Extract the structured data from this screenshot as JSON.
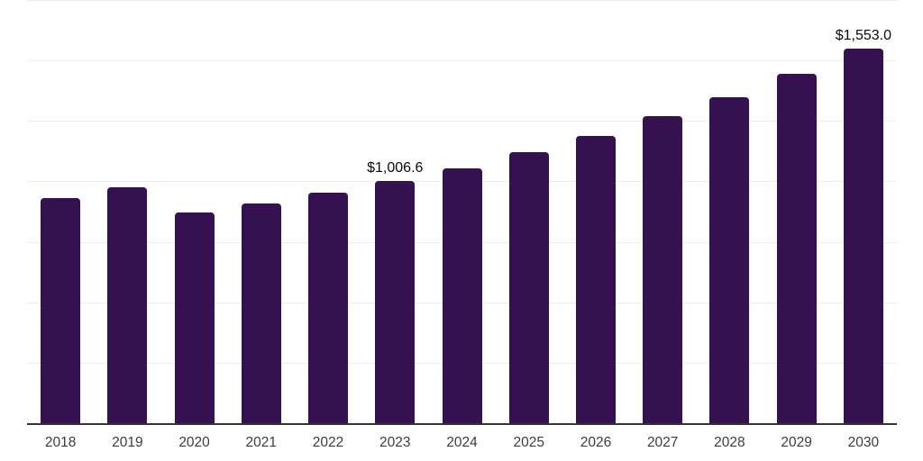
{
  "chart_data": {
    "type": "bar",
    "title": "",
    "xlabel": "",
    "ylabel": "",
    "categories": [
      "2018",
      "2019",
      "2020",
      "2021",
      "2022",
      "2023",
      "2024",
      "2025",
      "2026",
      "2027",
      "2028",
      "2029",
      "2030"
    ],
    "values": [
      933,
      978,
      874,
      914,
      958,
      1006.6,
      1057,
      1123,
      1190,
      1272,
      1350,
      1447,
      1553
    ],
    "value_labels": [
      "",
      "",
      "",
      "",
      "",
      "$1,006.6",
      "",
      "",
      "",
      "",
      "",
      "",
      "$1,553.0"
    ],
    "ylim": [
      0,
      1750
    ],
    "gridline_interval": 250,
    "grid": "horizontal-only",
    "legend": "none",
    "colors": {
      "bar": "#351150",
      "gridline": "#ededed",
      "axis_line": "#333333",
      "tick_label": "#3d3d3d",
      "value_label": "#0a0a0a",
      "background": "#ffffff"
    }
  }
}
